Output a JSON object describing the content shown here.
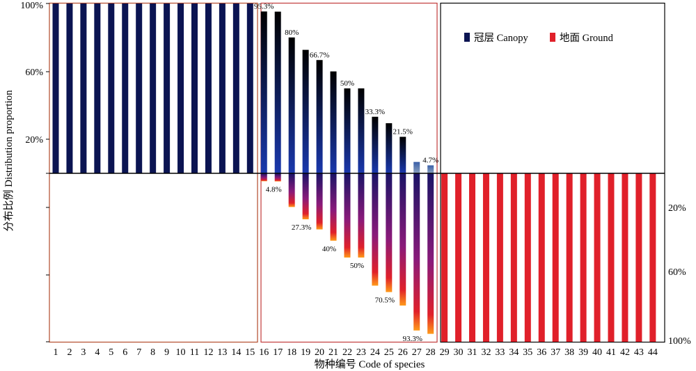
{
  "chart_data": {
    "type": "bar",
    "xlabel": "物种编号 Code of species",
    "ylabel": "分布比例 Distribution proportion",
    "categories": [
      "1",
      "2",
      "3",
      "4",
      "5",
      "6",
      "7",
      "8",
      "9",
      "10",
      "11",
      "12",
      "13",
      "14",
      "15",
      "16",
      "17",
      "18",
      "19",
      "20",
      "21",
      "22",
      "23",
      "24",
      "25",
      "26",
      "27",
      "28",
      "29",
      "30",
      "31",
      "32",
      "33",
      "34",
      "35",
      "36",
      "37",
      "38",
      "39",
      "40",
      "41",
      "42",
      "43",
      "44"
    ],
    "series": [
      {
        "name": "冠层 Canopy",
        "color": "#0b1452",
        "values": [
          100,
          100,
          100,
          100,
          100,
          100,
          100,
          100,
          100,
          100,
          100,
          100,
          100,
          100,
          100,
          95.3,
          95.2,
          80,
          72.7,
          66.7,
          60,
          50,
          50,
          33.3,
          29.5,
          21.5,
          6.7,
          4.7,
          0,
          0,
          0,
          0,
          0,
          0,
          0,
          0,
          0,
          0,
          0,
          0,
          0,
          0,
          0,
          0
        ]
      },
      {
        "name": "地面 Ground",
        "color": "#e0202a",
        "values": [
          0,
          0,
          0,
          0,
          0,
          0,
          0,
          0,
          0,
          0,
          0,
          0,
          0,
          0,
          0,
          4.7,
          4.8,
          20,
          27.3,
          33.3,
          40,
          50,
          50,
          66.7,
          70.5,
          78.5,
          93.3,
          95.3,
          100,
          100,
          100,
          100,
          100,
          100,
          100,
          100,
          100,
          100,
          100,
          100,
          100,
          100,
          100,
          100
        ]
      }
    ],
    "y_upper": {
      "ticks": [
        "100%",
        "60%",
        "20%"
      ],
      "tick_values": [
        100,
        60,
        20
      ],
      "range": [
        0,
        100
      ]
    },
    "y_lower": {
      "ticks": [
        "20%",
        "60%",
        "100%"
      ],
      "tick_values": [
        20,
        60,
        100
      ],
      "range": [
        0,
        100
      ]
    },
    "canopy_labels": [
      {
        "category": "16",
        "text": "95.3%"
      },
      {
        "category": "18",
        "text": "80%"
      },
      {
        "category": "20",
        "text": "66.7%"
      },
      {
        "category": "22",
        "text": "50%"
      },
      {
        "category": "24",
        "text": "33.3%"
      },
      {
        "category": "26",
        "text": "21.5%"
      },
      {
        "category": "28",
        "text": "4.7%"
      }
    ],
    "ground_labels": [
      {
        "category": "17",
        "text": "4.8%"
      },
      {
        "category": "19",
        "text": "27.3%"
      },
      {
        "category": "21",
        "text": "40%"
      },
      {
        "category": "23",
        "text": "50%"
      },
      {
        "category": "25",
        "text": "70.5%"
      },
      {
        "category": "27",
        "text": "93.3%"
      }
    ],
    "legend": {
      "placement": "top-right"
    },
    "grid": false
  }
}
